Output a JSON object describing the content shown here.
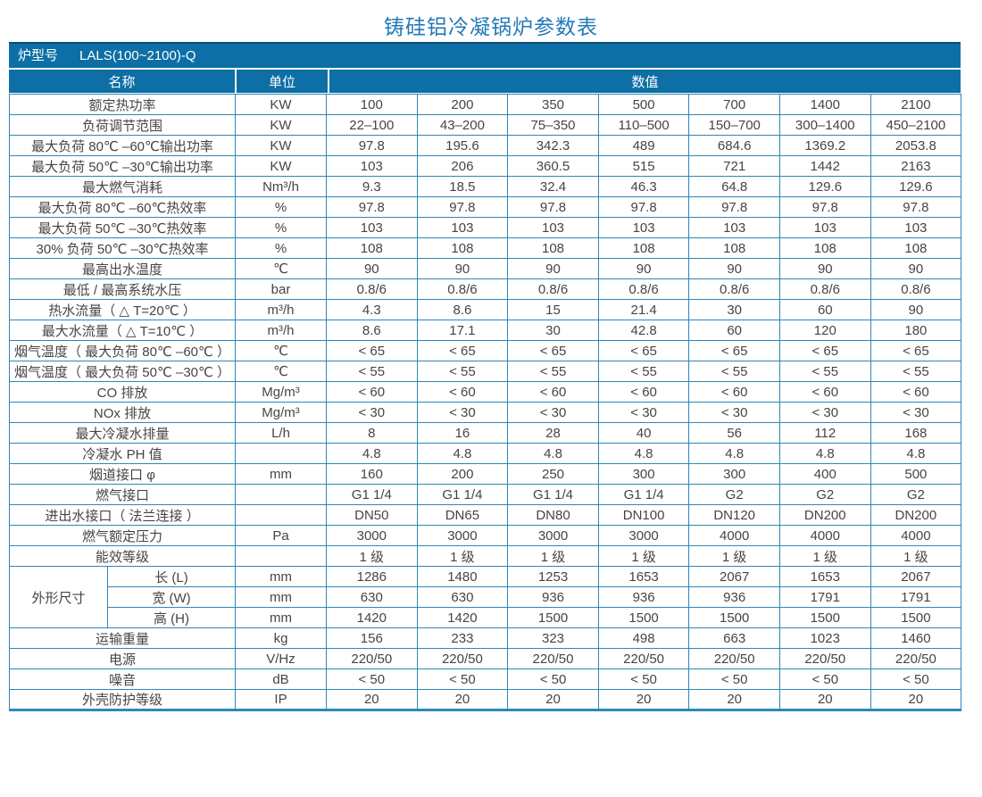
{
  "title": "铸硅铝冷凝锅炉参数表",
  "model_bar": {
    "label": "炉型号",
    "value": "LALS(100~2100)-Q"
  },
  "columns": {
    "name": "名称",
    "unit": "单位",
    "value": "数值"
  },
  "dimension_group_label": "外形尺寸",
  "colors": {
    "header_bg": "#0d6fa5",
    "grid_border": "#2f86bb",
    "title_text": "#2279b8",
    "body_text": "#454545"
  },
  "rows": [
    {
      "label": "额定热功率",
      "unit": "KW",
      "values": [
        "100",
        "200",
        "350",
        "500",
        "700",
        "1400",
        "2100"
      ]
    },
    {
      "label": "负荷调节范围",
      "unit": "KW",
      "values": [
        "22–100",
        "43–200",
        "75–350",
        "110–500",
        "150–700",
        "300–1400",
        "450–2100"
      ]
    },
    {
      "label": "最大负荷 80℃ –60℃输出功率",
      "unit": "KW",
      "values": [
        "97.8",
        "195.6",
        "342.3",
        "489",
        "684.6",
        "1369.2",
        "2053.8"
      ]
    },
    {
      "label": "最大负荷 50℃ –30℃输出功率",
      "unit": "KW",
      "values": [
        "103",
        "206",
        "360.5",
        "515",
        "721",
        "1442",
        "2163"
      ]
    },
    {
      "label": "最大燃气消耗",
      "unit": "Nm³/h",
      "values": [
        "9.3",
        "18.5",
        "32.4",
        "46.3",
        "64.8",
        "129.6",
        "129.6"
      ]
    },
    {
      "label": "最大负荷 80℃ –60℃热效率",
      "unit": "%",
      "values": [
        "97.8",
        "97.8",
        "97.8",
        "97.8",
        "97.8",
        "97.8",
        "97.8"
      ]
    },
    {
      "label": "最大负荷 50℃ –30℃热效率",
      "unit": "%",
      "values": [
        "103",
        "103",
        "103",
        "103",
        "103",
        "103",
        "103"
      ]
    },
    {
      "label": "30% 负荷 50℃ –30℃热效率",
      "unit": "%",
      "values": [
        "108",
        "108",
        "108",
        "108",
        "108",
        "108",
        "108"
      ]
    },
    {
      "label": "最高出水温度",
      "unit": "℃",
      "values": [
        "90",
        "90",
        "90",
        "90",
        "90",
        "90",
        "90"
      ]
    },
    {
      "label": "最低 / 最高系统水压",
      "unit": "bar",
      "values": [
        "0.8/6",
        "0.8/6",
        "0.8/6",
        "0.8/6",
        "0.8/6",
        "0.8/6",
        "0.8/6"
      ]
    },
    {
      "label": "热水流量（ △ T=20℃ ）",
      "unit": "m³/h",
      "values": [
        "4.3",
        "8.6",
        "15",
        "21.4",
        "30",
        "60",
        "90"
      ]
    },
    {
      "label": "最大水流量（ △ T=10℃ ）",
      "unit": "m³/h",
      "values": [
        "8.6",
        "17.1",
        "30",
        "42.8",
        "60",
        "120",
        "180"
      ]
    },
    {
      "label": "烟气温度（ 最大负荷 80℃ –60℃ ）",
      "unit": "℃",
      "values": [
        "< 65",
        "< 65",
        "< 65",
        "< 65",
        "< 65",
        "< 65",
        "< 65"
      ]
    },
    {
      "label": "烟气温度（ 最大负荷 50℃ –30℃ ）",
      "unit": "℃",
      "values": [
        "< 55",
        "< 55",
        "< 55",
        "< 55",
        "< 55",
        "< 55",
        "< 55"
      ]
    },
    {
      "label": "CO 排放",
      "unit": "Mg/m³",
      "values": [
        "< 60",
        "< 60",
        "< 60",
        "< 60",
        "< 60",
        "< 60",
        "< 60"
      ]
    },
    {
      "label": "NOx 排放",
      "unit": "Mg/m³",
      "values": [
        "< 30",
        "< 30",
        "< 30",
        "< 30",
        "< 30",
        "< 30",
        "< 30"
      ]
    },
    {
      "label": "最大冷凝水排量",
      "unit": "L/h",
      "values": [
        "8",
        "16",
        "28",
        "40",
        "56",
        "112",
        "168"
      ]
    },
    {
      "label": "冷凝水 PH 值",
      "unit": "",
      "values": [
        "4.8",
        "4.8",
        "4.8",
        "4.8",
        "4.8",
        "4.8",
        "4.8"
      ]
    },
    {
      "label": "烟道接口 φ",
      "unit": "mm",
      "values": [
        "160",
        "200",
        "250",
        "300",
        "300",
        "400",
        "500"
      ]
    },
    {
      "label": "燃气接口",
      "unit": "",
      "values": [
        "G1 1/4",
        "G1 1/4",
        "G1 1/4",
        "G1 1/4",
        "G2",
        "G2",
        "G2"
      ]
    },
    {
      "label": "进出水接口（ 法兰连接 ）",
      "unit": "",
      "values": [
        "DN50",
        "DN65",
        "DN80",
        "DN100",
        "DN120",
        "DN200",
        "DN200"
      ]
    },
    {
      "label": "燃气额定压力",
      "unit": "Pa",
      "values": [
        "3000",
        "3000",
        "3000",
        "3000",
        "4000",
        "4000",
        "4000"
      ]
    },
    {
      "label": "能效等级",
      "unit": "",
      "values": [
        "1 级",
        "1 级",
        "1 级",
        "1 级",
        "1 级",
        "1 级",
        "1 级"
      ]
    },
    {
      "label": "长 (L)",
      "unit": "mm",
      "sub": true,
      "group_start": true,
      "group_span": 3,
      "values": [
        "1286",
        "1480",
        "1253",
        "1653",
        "2067",
        "1653",
        "2067"
      ]
    },
    {
      "label": "宽 (W)",
      "unit": "mm",
      "sub": true,
      "values": [
        "630",
        "630",
        "936",
        "936",
        "936",
        "1791",
        "1791"
      ]
    },
    {
      "label": "高 (H)",
      "unit": "mm",
      "sub": true,
      "values": [
        "1420",
        "1420",
        "1500",
        "1500",
        "1500",
        "1500",
        "1500"
      ]
    },
    {
      "label": "运输重量",
      "unit": "kg",
      "values": [
        "156",
        "233",
        "323",
        "498",
        "663",
        "1023",
        "1460"
      ]
    },
    {
      "label": "电源",
      "unit": "V/Hz",
      "values": [
        "220/50",
        "220/50",
        "220/50",
        "220/50",
        "220/50",
        "220/50",
        "220/50"
      ]
    },
    {
      "label": "噪音",
      "unit": "dB",
      "values": [
        "< 50",
        "< 50",
        "< 50",
        "< 50",
        "< 50",
        "< 50",
        "< 50"
      ]
    },
    {
      "label": "外壳防护等级",
      "unit": "IP",
      "values": [
        "20",
        "20",
        "20",
        "20",
        "20",
        "20",
        "20"
      ]
    }
  ]
}
